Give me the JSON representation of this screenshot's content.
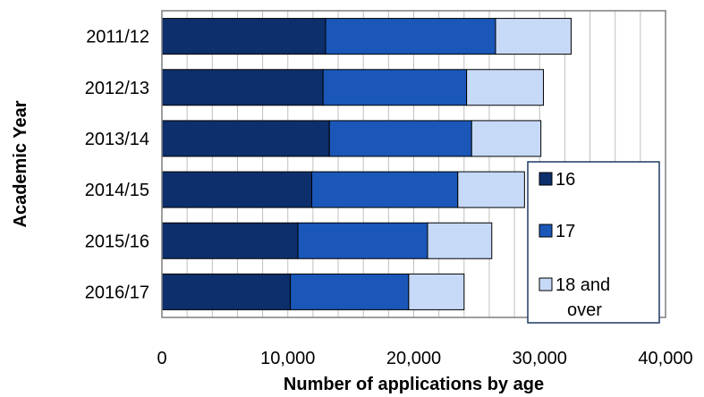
{
  "chart_data": {
    "type": "bar",
    "orientation": "horizontal",
    "stacked": true,
    "title": "",
    "xlabel": "Number of applications by age",
    "ylabel": "Academic Year",
    "categories": [
      "2011/12",
      "2012/13",
      "2013/14",
      "2014/15",
      "2015/16",
      "2016/17"
    ],
    "series": [
      {
        "name": "16",
        "color": "#0d2f6b",
        "values": [
          13000,
          12800,
          13300,
          11900,
          10800,
          10200
        ]
      },
      {
        "name": "17",
        "color": "#1a57b8",
        "values": [
          13500,
          11400,
          11300,
          11600,
          10300,
          9400
        ]
      },
      {
        "name": "18 and over",
        "color": "#c6d9f7",
        "values": [
          6000,
          6100,
          5500,
          5300,
          5100,
          4400
        ]
      }
    ],
    "xlim": [
      0,
      40000
    ],
    "xticks": [
      0,
      10000,
      20000,
      30000,
      40000
    ],
    "xtick_labels": [
      "0",
      "10,000",
      "20,000",
      "30,000",
      "40,000"
    ],
    "grid": "vertical",
    "legend_position": "bottom-right"
  }
}
